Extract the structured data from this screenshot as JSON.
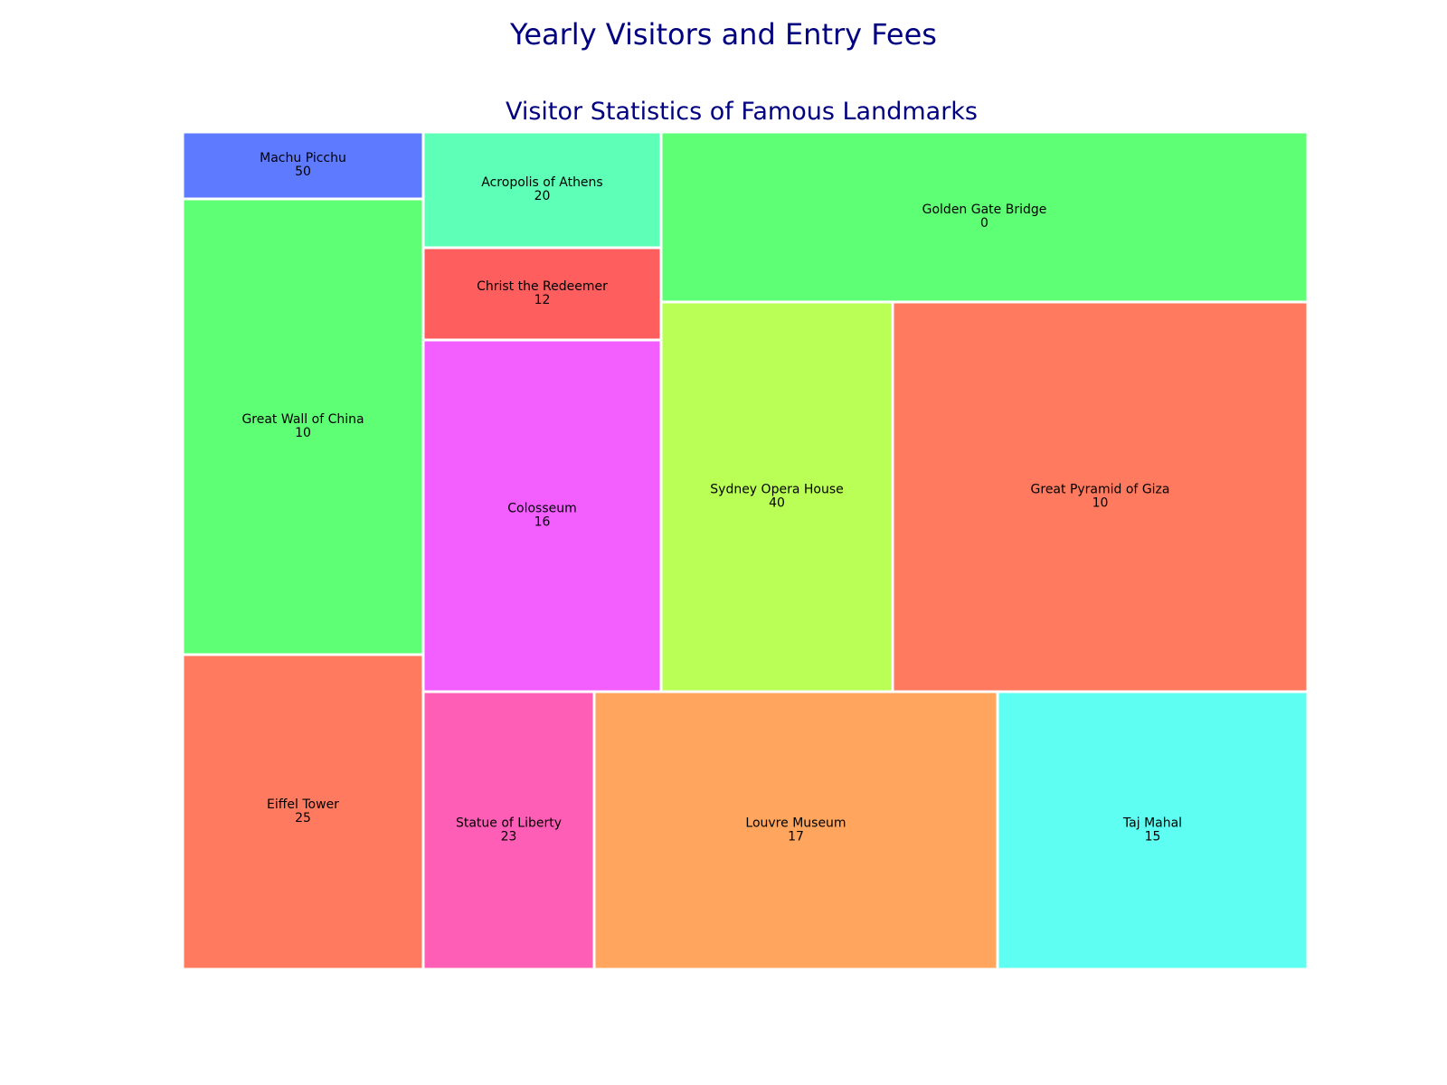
{
  "figure": {
    "title": "Yearly Visitors and Entry Fees"
  },
  "chart_data": {
    "type": "treemap",
    "title": "Visitor Statistics of Famous Landmarks",
    "value_label": "Entry Fee",
    "items": [
      {
        "name": "Machu Picchu",
        "entry_fee": 50,
        "color": "#5e7bff"
      },
      {
        "name": "Great Wall of China",
        "entry_fee": 10,
        "color": "#5eff74"
      },
      {
        "name": "Eiffel Tower",
        "entry_fee": 25,
        "color": "#ff7a5e"
      },
      {
        "name": "Acropolis of Athens",
        "entry_fee": 20,
        "color": "#5effb6"
      },
      {
        "name": "Christ the Redeemer",
        "entry_fee": 12,
        "color": "#ff5e5e"
      },
      {
        "name": "Colosseum",
        "entry_fee": 16,
        "color": "#f25eff"
      },
      {
        "name": "Golden Gate Bridge",
        "entry_fee": 0,
        "color": "#5eff74"
      },
      {
        "name": "Sydney Opera House",
        "entry_fee": 40,
        "color": "#baff56"
      },
      {
        "name": "Great Pyramid of Giza",
        "entry_fee": 10,
        "color": "#ff7a5e"
      },
      {
        "name": "Statue of Liberty",
        "entry_fee": 23,
        "color": "#ff5eb6"
      },
      {
        "name": "Louvre Museum",
        "entry_fee": 17,
        "color": "#ffa55e"
      },
      {
        "name": "Taj Mahal",
        "entry_fee": 15,
        "color": "#5efff2"
      }
    ]
  }
}
